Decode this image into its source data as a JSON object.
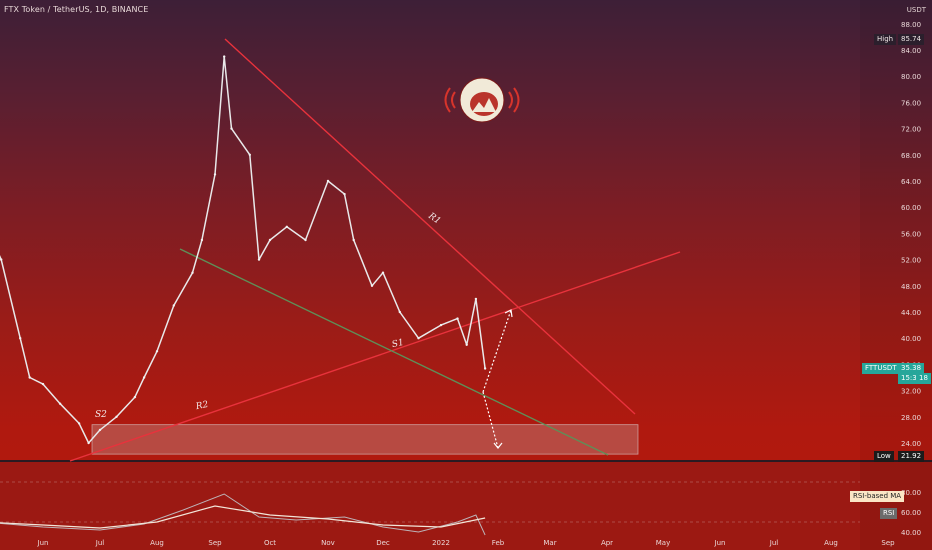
{
  "header": {
    "title": "FTX Token / TetherUS, 1D, BINANCE",
    "currency": "USDT"
  },
  "markers": {
    "high_label": "High",
    "high_value": "85.74",
    "low_label": "Low",
    "low_value": "21.92",
    "symbol_label": "FTTUSDT",
    "price": "35.38",
    "countdown_a": "15:37",
    "countdown_b": "18"
  },
  "annotations": {
    "r1": "R1",
    "r2": "R2",
    "s1": "S1",
    "s2": "S2"
  },
  "indicator": {
    "ma_label": "RSI-based MA",
    "rsi_label": "RSI"
  },
  "colors": {
    "resistance": "#e8323c",
    "support": "#5e8f58",
    "zone": "#c9c9c9"
  },
  "logo": "astronaut-helmet-logo",
  "chart_data": [
    {
      "type": "line",
      "title": "FTX Token / TetherUS, 1D, BINANCE",
      "xlabel": "",
      "ylabel": "",
      "x_ticks": [
        "Jun",
        "Jul",
        "Aug",
        "Sep",
        "Oct",
        "Nov",
        "Dec",
        "2022",
        "Feb",
        "Mar",
        "Apr",
        "May",
        "Jun",
        "Jul",
        "Aug",
        "Sep"
      ],
      "y_ticks": [
        24,
        28,
        32,
        36,
        40,
        44,
        48,
        52,
        56,
        60,
        64,
        68,
        72,
        76,
        80,
        84,
        88
      ],
      "ylim": [
        21.5,
        90
      ],
      "grid": false,
      "series": [
        {
          "name": "FTTUSDT",
          "x": [
            "2021-05-01",
            "2021-05-10",
            "2021-05-20",
            "2021-05-25",
            "2021-06-01",
            "2021-06-10",
            "2021-06-20",
            "2021-06-25",
            "2021-07-01",
            "2021-07-10",
            "2021-07-20",
            "2021-07-25",
            "2021-08-01",
            "2021-08-10",
            "2021-08-20",
            "2021-08-25",
            "2021-09-01",
            "2021-09-06",
            "2021-09-10",
            "2021-09-20",
            "2021-09-25",
            "2021-10-01",
            "2021-10-10",
            "2021-10-20",
            "2021-11-01",
            "2021-11-10",
            "2021-11-15",
            "2021-11-25",
            "2021-12-01",
            "2021-12-10",
            "2021-12-20",
            "2022-01-01",
            "2022-01-10",
            "2022-01-15",
            "2022-01-20",
            "2022-01-25"
          ],
          "values": [
            58,
            52,
            40,
            34,
            33,
            30,
            27,
            24,
            26,
            28,
            31,
            34,
            38,
            45,
            50,
            55,
            65,
            83,
            72,
            68,
            52,
            55,
            57,
            55,
            64,
            62,
            55,
            48,
            50,
            44,
            40,
            42,
            43,
            39,
            46,
            35.38
          ]
        }
      ],
      "annotations": [
        "R1",
        "R2",
        "S1",
        "S2"
      ],
      "high": 85.74,
      "low": 21.92
    },
    {
      "type": "line",
      "title": "",
      "y_ticks": [
        40,
        60,
        80
      ],
      "ylim": [
        20,
        90
      ],
      "series": [
        {
          "name": "RSI",
          "x": [
            "2021-05-01",
            "2021-06-01",
            "2021-07-01",
            "2021-07-25",
            "2021-08-15",
            "2021-09-06",
            "2021-09-25",
            "2021-10-15",
            "2021-11-10",
            "2021-12-01",
            "2021-12-20",
            "2022-01-10",
            "2022-01-20",
            "2022-01-25"
          ],
          "values": [
            50,
            45,
            42,
            48,
            62,
            78,
            55,
            52,
            55,
            45,
            40,
            50,
            57,
            37
          ]
        },
        {
          "name": "RSI-based MA",
          "x": [
            "2021-05-01",
            "2021-06-01",
            "2021-07-01",
            "2021-08-01",
            "2021-09-01",
            "2021-10-01",
            "2021-11-01",
            "2021-12-01",
            "2022-01-01",
            "2022-01-25"
          ],
          "values": [
            50,
            47,
            44,
            50,
            66,
            57,
            53,
            47,
            45,
            54
          ]
        }
      ]
    }
  ]
}
